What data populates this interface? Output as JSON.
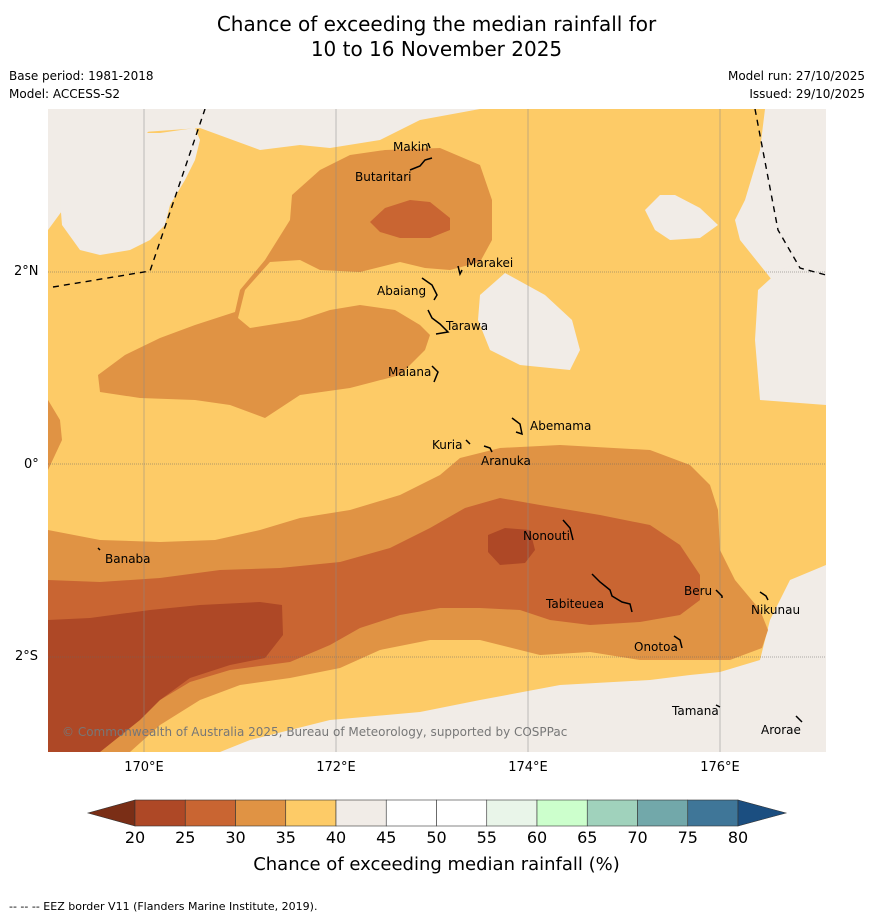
{
  "title_line1": "Chance of exceeding the median rainfall for",
  "title_line2": "10 to 16 November 2025",
  "base_period": "Base period: 1981-2018",
  "model": "Model: ACCESS-S2",
  "model_run": "Model run: 27/10/2025",
  "issued": "Issued: 29/10/2025",
  "copyright": "© Commonwealth of Australia 2025, Bureau of Meteorology, supported by COSPPac",
  "footer": "--  --  -- EEZ border V11 (Flanders Marine Institute, 2019).",
  "lat_labels": [
    "2°N",
    "0°",
    "2°S"
  ],
  "lon_labels": [
    "170°E",
    "172°E",
    "174°E",
    "176°E"
  ],
  "places": [
    "Makin",
    "Butaritari",
    "Marakei",
    "Abaiang",
    "Tarawa",
    "Maiana",
    "Abemama",
    "Kuria",
    "Aranuka",
    "Nonouti",
    "Banaba",
    "Beru",
    "Tabiteuea",
    "Nikunau",
    "Onotoa",
    "Tamana",
    "Arorae"
  ],
  "colorbar": {
    "label": "Chance of exceeding median rainfall (%)",
    "ticks": [
      "20",
      "25",
      "30",
      "35",
      "40",
      "45",
      "50",
      "55",
      "60",
      "65",
      "70",
      "75",
      "80"
    ],
    "colors": [
      "#7a2e16",
      "#ae4826",
      "#c96532",
      "#e09344",
      "#fdcb67",
      "#f1ece7",
      "#ffffff",
      "#ffffff",
      "#e9f5e9",
      "#ccffcc",
      "#a0d2bc",
      "#72a8aa",
      "#3f7698",
      "#1b4e80"
    ]
  },
  "colors": {
    "c20_25": "#ae4826",
    "c25_30": "#c96532",
    "c30_35": "#e09344",
    "c35_40": "#fdcb67",
    "c40_45": "#f1ece7"
  }
}
